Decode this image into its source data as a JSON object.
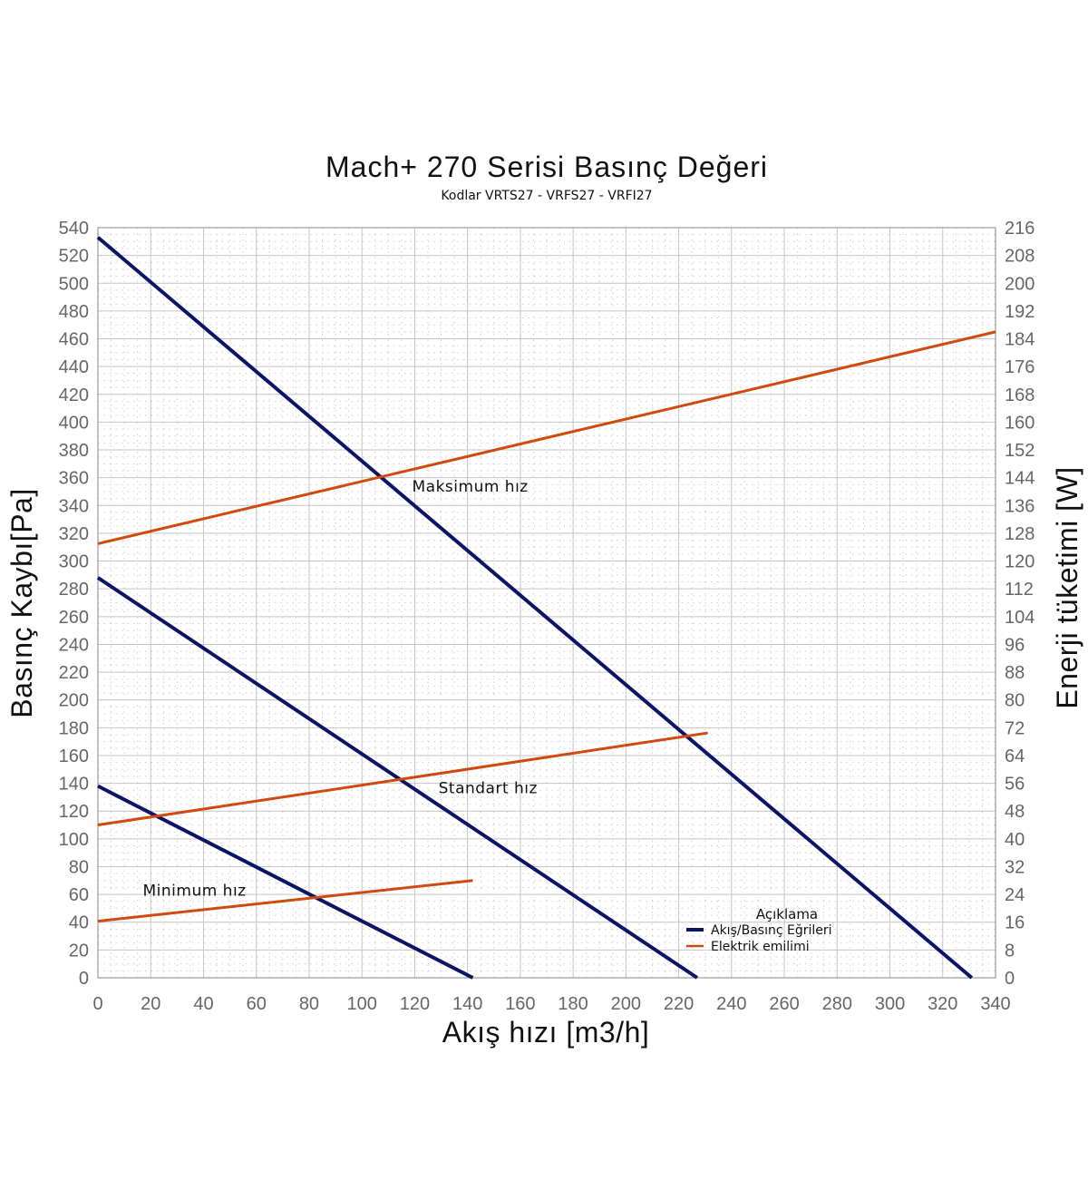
{
  "chart_data": {
    "type": "line",
    "title": "Mach+ 270 Serisi Basınç Değeri",
    "subtitle": "Kodlar VRTS27 - VRFS27 - VRFI27",
    "xlabel": "Akış hızı [m3/h]",
    "ylabel": "Basınç Kaybı[Pa]",
    "y2label": "Enerji tüketimi [W]",
    "xlim": [
      0,
      340
    ],
    "ylim": [
      0,
      540
    ],
    "y2lim": [
      0,
      216
    ],
    "x_ticks": [
      0,
      20,
      40,
      60,
      80,
      100,
      120,
      140,
      160,
      180,
      200,
      220,
      240,
      260,
      280,
      300,
      320,
      340
    ],
    "y_ticks": [
      0,
      20,
      40,
      60,
      80,
      100,
      120,
      140,
      160,
      180,
      200,
      220,
      240,
      260,
      280,
      300,
      320,
      340,
      360,
      380,
      400,
      420,
      440,
      460,
      480,
      500,
      520,
      540
    ],
    "y2_ticks": [
      0,
      8,
      16,
      24,
      32,
      40,
      48,
      56,
      64,
      72,
      80,
      88,
      96,
      104,
      112,
      120,
      128,
      136,
      144,
      152,
      160,
      168,
      176,
      184,
      192,
      200,
      208,
      216
    ],
    "grid": true,
    "legend_position": "bottom-right",
    "legend": {
      "title": "Açıklama",
      "entries": [
        {
          "label": "Akış/Basınç Eğrileri",
          "color": "#0c1466"
        },
        {
          "label": "Elektrik emilimi",
          "color": "#d04a10"
        }
      ]
    },
    "series": [
      {
        "group": "flow_pressure",
        "axis": "left",
        "color": "#0c1466",
        "x": [
          0,
          331
        ],
        "y": [
          533,
          0
        ]
      },
      {
        "group": "flow_pressure",
        "axis": "left",
        "color": "#0c1466",
        "x": [
          0,
          227
        ],
        "y": [
          288,
          0
        ]
      },
      {
        "group": "flow_pressure",
        "axis": "left",
        "color": "#0c1466",
        "x": [
          0,
          142
        ],
        "y": [
          138,
          0
        ]
      },
      {
        "group": "power",
        "axis": "right",
        "color": "#d04a10",
        "x": [
          0,
          340
        ],
        "y": [
          125,
          186
        ]
      },
      {
        "group": "power",
        "axis": "right",
        "color": "#d04a10",
        "x": [
          0,
          231
        ],
        "y": [
          44,
          70.5
        ]
      },
      {
        "group": "power",
        "axis": "right",
        "color": "#d04a10",
        "x": [
          0,
          142
        ],
        "y": [
          16.3,
          28
        ]
      }
    ],
    "annotations": [
      {
        "text": "Maksimum hız",
        "x": 119,
        "y": 350
      },
      {
        "text": "Standart hız",
        "x": 129,
        "y": 133
      },
      {
        "text": "Minimum hız",
        "x": 17,
        "y": 59
      }
    ]
  }
}
